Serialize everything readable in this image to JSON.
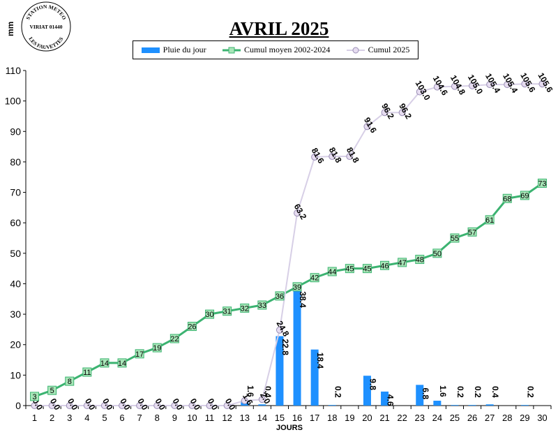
{
  "stamp": {
    "top": "STATION METEO",
    "middle": "VIRIAT 01440",
    "bottom": "LES FAUVETTES"
  },
  "colors": {
    "bar": "#1e90ff",
    "cumul_moyen": "#3cb371",
    "cumul_moyen_marker": "#a8e6b8",
    "cumul_2025": "#d7cfe6",
    "cumul_2025_marker": "#e6dcf0"
  },
  "chart_data": {
    "type": "bar",
    "title": "AVRIL 2025",
    "ylabel": "mm",
    "xlabel": "JOURS",
    "ylim": [
      0,
      110
    ],
    "yticks": [
      0,
      10,
      20,
      30,
      40,
      50,
      60,
      70,
      80,
      90,
      100,
      110
    ],
    "grid": false,
    "legend_position": "top-center",
    "categories": [
      "1",
      "2",
      "3",
      "4",
      "5",
      "6",
      "7",
      "8",
      "9",
      "10",
      "11",
      "12",
      "13",
      "14",
      "15",
      "16",
      "17",
      "18",
      "19",
      "20",
      "21",
      "22",
      "23",
      "24",
      "25",
      "26",
      "27",
      "28",
      "29",
      "30"
    ],
    "series": [
      {
        "name": "Pluie du jour",
        "type": "bar",
        "values": [
          0,
          0,
          0,
          0,
          0,
          0,
          0,
          0,
          0,
          0,
          0,
          0,
          1.6,
          0.4,
          22.8,
          38.4,
          18.4,
          0.2,
          0,
          9.8,
          4.6,
          0,
          6.8,
          1.6,
          0.2,
          0.2,
          0.4,
          0,
          0.2,
          0
        ],
        "labels": [
          "",
          "",
          "",
          "",
          "",
          "",
          "",
          "",
          "",
          "",
          "",
          "",
          "1.6",
          "0.4",
          "22.8",
          "38.4",
          "18.4",
          "0.2",
          "",
          "9.8",
          "4.6",
          "",
          "6.8",
          "1.6",
          "0.2",
          "0.2",
          "0.4",
          "",
          "0.2",
          ""
        ]
      },
      {
        "name": "Cumul moyen 2002-2024",
        "type": "line",
        "values": [
          3,
          5,
          8,
          11,
          14,
          14,
          17,
          19,
          22,
          26,
          30,
          31,
          32,
          33,
          36,
          39,
          42,
          44,
          45,
          45,
          46,
          47,
          48,
          50,
          55,
          57,
          61,
          68,
          69,
          73
        ],
        "labels": [
          "3",
          "5",
          "8",
          "11",
          "14",
          "14",
          "17",
          "19",
          "22",
          "26",
          "30",
          "31",
          "32",
          "33",
          "36",
          "39",
          "42",
          "44",
          "45",
          "45",
          "46",
          "47",
          "48",
          "50",
          "55",
          "57",
          "61",
          "68",
          "69",
          "73"
        ]
      },
      {
        "name": "Cumul 2025",
        "type": "line",
        "values": [
          0,
          0,
          0,
          0,
          0,
          0,
          0,
          0,
          0,
          0,
          0,
          0,
          1.6,
          2.0,
          24.8,
          63.2,
          81.6,
          81.8,
          81.8,
          91.6,
          96.2,
          96.2,
          103.0,
          104.6,
          104.8,
          105.0,
          105.4,
          105.4,
          105.6,
          105.6
        ],
        "labels": [
          "0.0",
          "0.0",
          "0.0",
          "0.0",
          "0.0",
          "0.0",
          "0.0",
          "0.0",
          "0.0",
          "0.0",
          "0.0",
          "0.0",
          "1.6",
          "2.0",
          "24.8",
          "63.2",
          "81.6",
          "81.8",
          "81.8",
          "91.6",
          "96.2",
          "96.2",
          "103.0",
          "104.6",
          "104.8",
          "105.0",
          "105.4",
          "105.4",
          "105.6",
          "105.6"
        ]
      }
    ]
  }
}
